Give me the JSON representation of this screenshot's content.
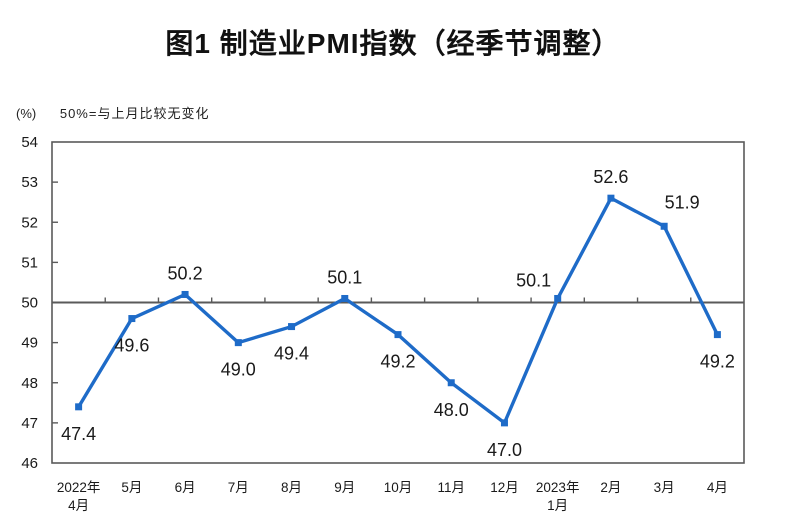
{
  "chart_data": {
    "type": "line",
    "title": "图1  制造业PMI指数（经季节调整）",
    "unit": "(%)",
    "note": "50%=与上月比较无变化",
    "categories": [
      "2022年\n4月",
      "5月",
      "6月",
      "7月",
      "8月",
      "9月",
      "10月",
      "11月",
      "12月",
      "2023年\n1月",
      "2月",
      "3月",
      "4月"
    ],
    "series": [
      {
        "name": "制造业PMI指数",
        "values": [
          47.4,
          49.6,
          50.2,
          49.0,
          49.4,
          50.1,
          49.2,
          48.0,
          47.0,
          50.1,
          52.6,
          51.9,
          49.2
        ]
      }
    ],
    "ylim": [
      46,
      54
    ],
    "ytick_step": 1,
    "baseline": 50,
    "grid": false,
    "legend": "none",
    "label_placement": [
      "below",
      "below",
      "above",
      "below",
      "below",
      "above",
      "below",
      "below",
      "below",
      "above-left",
      "above",
      "above-right",
      "below"
    ],
    "colors": {
      "line": "#1e6bc8",
      "axis": "#5a5a5a",
      "text": "#1a1a1a"
    }
  }
}
